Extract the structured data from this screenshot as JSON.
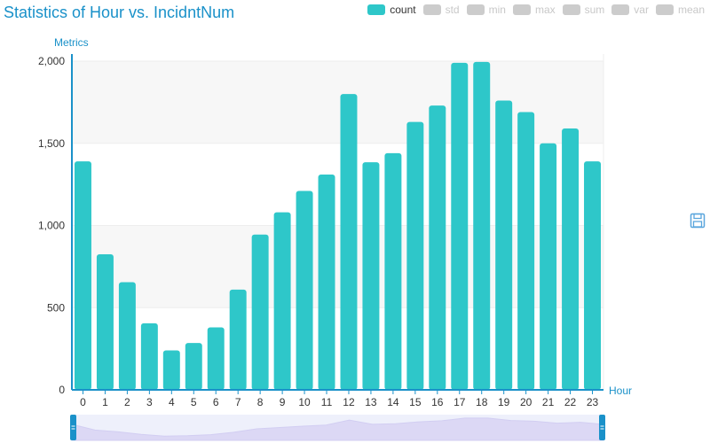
{
  "chart_data": {
    "type": "bar",
    "title": "Statistics of Hour vs. IncidntNum",
    "xlabel": "Hour",
    "ylabel": "Metrics",
    "categories": [
      "0",
      "1",
      "2",
      "3",
      "4",
      "5",
      "6",
      "7",
      "8",
      "9",
      "10",
      "11",
      "12",
      "13",
      "14",
      "15",
      "16",
      "17",
      "18",
      "19",
      "20",
      "21",
      "22",
      "23"
    ],
    "series": [
      {
        "name": "count",
        "values": [
          1390,
          825,
          655,
          405,
          240,
          285,
          380,
          610,
          945,
          1080,
          1210,
          1310,
          1800,
          1385,
          1440,
          1630,
          1730,
          1990,
          1995,
          1760,
          1690,
          1500,
          1590,
          1390
        ]
      }
    ],
    "ylim": [
      0,
      2000
    ],
    "yticks": [
      0,
      500,
      1000,
      1500,
      2000
    ],
    "ytick_labels": [
      "0",
      "500",
      "1,000",
      "1,500",
      "2,000"
    ],
    "grid": true,
    "bar_color": "#2ec7c9",
    "legend_position": "top-right"
  },
  "legend": [
    {
      "label": "count",
      "active": true
    },
    {
      "label": "std",
      "active": false
    },
    {
      "label": "min",
      "active": false
    },
    {
      "label": "max",
      "active": false
    },
    {
      "label": "sum",
      "active": false
    },
    {
      "label": "var",
      "active": false
    },
    {
      "label": "mean",
      "active": false
    }
  ],
  "toolbox": {
    "icon": "save-icon"
  },
  "colors": {
    "accent": "#1a91c9",
    "bar": "#2ec7c9",
    "zoom_fill": "#e8e6f8",
    "zoom_handle": "#1a91c9"
  }
}
